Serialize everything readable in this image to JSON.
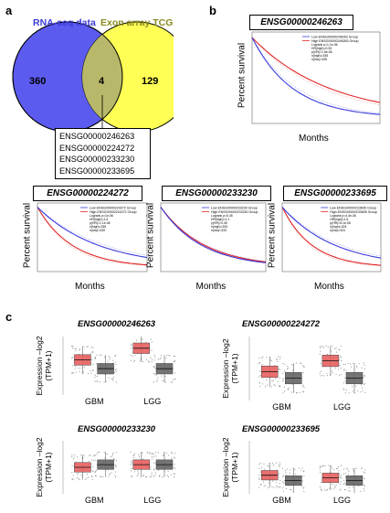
{
  "panels": {
    "a": "a",
    "b": "b",
    "c": "c"
  },
  "venn": {
    "left_label": "RNA-seq data",
    "right_label": "Exon array TCGA",
    "left_only": "360",
    "overlap": "4",
    "right_only": "129",
    "left_color": "#5b5bf0",
    "right_color": "#ffff55",
    "overlap_color": "#b8b86a",
    "label_left_color": "#3a3ad8",
    "label_right_color": "#8a8a20"
  },
  "genes": [
    "ENSG00000246263",
    "ENSG00000224272",
    "ENSG00000233230",
    "ENSG00000233695"
  ],
  "km": {
    "ylabel": "Percent survival",
    "xlabel": "Months",
    "plots": [
      {
        "title": "ENSG00000246263",
        "legend": [
          "Low ENSG00000246263 Group",
          "High ENSG00000246263 Group"
        ],
        "stats": [
          "Logrank p=1.1e-06",
          "HR(high)=0.53",
          "p(HR)=1.5e-06",
          "n(high)=335",
          "n(low)=335"
        ]
      },
      {
        "title": "ENSG00000224272",
        "legend": [
          "Low ENSG00000224272 Group",
          "High ENSG00000224272 Group"
        ],
        "stats": [
          "Logrank p=1e-06",
          "HR(high)=1.6",
          "p(HR)=1.1e-06",
          "n(high)=335",
          "n(low)=335"
        ]
      },
      {
        "title": "ENSG00000233230",
        "legend": [
          "Low ENSG00000233230 Group",
          "High ENSG00000233230 Group"
        ],
        "stats": [
          "Logrank p=0.45",
          "HR(high)=1.1",
          "p(HR)=0.45",
          "n(high)=333",
          "n(low)=333"
        ]
      },
      {
        "title": "ENSG00000233695",
        "legend": [
          "Low ENSG00000233695 Group",
          "High ENSG00000233695 Group"
        ],
        "stats": [
          "Logrank p=4.4e-06",
          "HR(high)=1.6",
          "p(HR)=5.1e-06",
          "n(high)=324",
          "n(low)=324"
        ]
      }
    ],
    "low_color": "#3a3adc",
    "high_color": "#e02828"
  },
  "box": {
    "ylabel_line1": "Expression –log2",
    "ylabel_line2": "(TPM+1)",
    "categories": [
      "GBM",
      "LGG"
    ],
    "tumor_color": "#e86060",
    "normal_color": "#666666",
    "plots": [
      {
        "title": "ENSG00000246263"
      },
      {
        "title": "ENSG00000224272"
      },
      {
        "title": "ENSG00000233230"
      },
      {
        "title": "ENSG00000233695"
      }
    ]
  }
}
